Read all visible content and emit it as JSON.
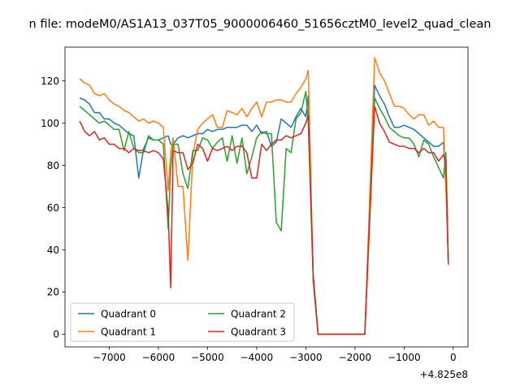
{
  "chart_data": {
    "type": "line",
    "title": "n file: modeM0/AS1A13_037T05_9000006460_51656cztM0_level2_quad_clean",
    "xlabel": "",
    "ylabel": "",
    "x_offset_label": "+4.825e8",
    "xlim": [
      -7900,
      300
    ],
    "ylim": [
      -6,
      136
    ],
    "xticks": [
      -7000,
      -6000,
      -5000,
      -4000,
      -3000,
      -2000,
      -1000,
      0
    ],
    "xtick_labels": [
      "−7000",
      "−6000",
      "−5000",
      "−4000",
      "−3000",
      "−2000",
      "−1000",
      "0"
    ],
    "yticks": [
      0,
      20,
      40,
      60,
      80,
      100,
      120
    ],
    "ytick_labels": [
      "0",
      "20",
      "40",
      "60",
      "80",
      "100",
      "120"
    ],
    "grid": false,
    "legend_position": "lower-left",
    "legend_columns": 2,
    "series": [
      {
        "name": "Quadrant 0",
        "color": "#1f77b4",
        "x": [
          -7600,
          -7500,
          -7400,
          -7300,
          -7200,
          -7100,
          -7000,
          -6900,
          -6800,
          -6700,
          -6600,
          -6500,
          -6400,
          -6300,
          -6200,
          -6100,
          -6000,
          -5900,
          -5800,
          -5750,
          -5700,
          -5600,
          -5500,
          -5400,
          -5300,
          -5200,
          -5100,
          -5000,
          -4900,
          -4800,
          -4700,
          -4600,
          -4500,
          -4400,
          -4300,
          -4200,
          -4100,
          -4000,
          -3900,
          -3800,
          -3700,
          -3600,
          -3500,
          -3400,
          -3300,
          -3200,
          -3100,
          -3000,
          -2950,
          -2850,
          -2750,
          -1800,
          -1600,
          -1500,
          -1400,
          -1300,
          -1200,
          -1100,
          -1000,
          -900,
          -800,
          -700,
          -600,
          -500,
          -400,
          -300,
          -200,
          -150,
          -100
        ],
        "y": [
          112,
          111,
          109,
          105,
          105,
          102,
          102,
          100,
          99,
          97,
          95,
          94,
          74,
          88,
          93,
          92,
          92,
          93,
          94,
          90,
          90,
          93,
          94,
          93,
          94,
          95,
          95,
          97,
          96,
          97,
          97,
          98,
          98,
          98,
          99,
          99,
          96,
          99,
          95,
          96,
          89,
          91,
          102,
          100,
          98,
          103,
          107,
          103,
          113,
          27,
          0,
          0,
          118,
          113,
          109,
          103,
          98,
          98,
          99,
          98,
          97,
          95,
          93,
          91,
          89,
          89,
          91,
          70,
          35
        ]
      },
      {
        "name": "Quadrant 1",
        "color": "#ff7f0e",
        "x": [
          -7600,
          -7500,
          -7400,
          -7300,
          -7200,
          -7100,
          -7000,
          -6900,
          -6800,
          -6700,
          -6600,
          -6500,
          -6400,
          -6300,
          -6200,
          -6100,
          -6000,
          -5900,
          -5800,
          -5750,
          -5700,
          -5600,
          -5500,
          -5400,
          -5300,
          -5200,
          -5100,
          -5000,
          -4900,
          -4800,
          -4700,
          -4600,
          -4500,
          -4400,
          -4300,
          -4200,
          -4100,
          -4000,
          -3900,
          -3800,
          -3700,
          -3600,
          -3500,
          -3400,
          -3300,
          -3200,
          -3100,
          -3000,
          -2950,
          -2850,
          -2750,
          -1800,
          -1600,
          -1500,
          -1400,
          -1300,
          -1200,
          -1100,
          -1000,
          -900,
          -800,
          -700,
          -600,
          -500,
          -400,
          -300,
          -200,
          -150,
          -100
        ],
        "y": [
          121,
          119,
          118,
          114,
          113,
          114,
          111,
          109,
          108,
          106,
          105,
          103,
          101,
          102,
          100,
          101,
          100,
          98,
          68,
          86,
          93,
          70,
          70,
          35,
          85,
          97,
          100,
          102,
          104,
          98,
          98,
          106,
          105,
          104,
          107,
          103,
          107,
          110,
          103,
          110,
          110,
          111,
          111,
          110,
          110,
          114,
          117,
          121,
          125,
          25,
          0,
          0,
          131,
          124,
          120,
          114,
          108,
          108,
          107,
          104,
          102,
          104,
          104,
          99,
          101,
          98,
          98,
          70,
          34
        ]
      },
      {
        "name": "Quadrant 2",
        "color": "#2ca02c",
        "x": [
          -7600,
          -7500,
          -7400,
          -7300,
          -7200,
          -7100,
          -7000,
          -6900,
          -6800,
          -6700,
          -6600,
          -6500,
          -6400,
          -6300,
          -6200,
          -6100,
          -6000,
          -5900,
          -5800,
          -5750,
          -5700,
          -5600,
          -5500,
          -5400,
          -5300,
          -5200,
          -5100,
          -5000,
          -4900,
          -4800,
          -4700,
          -4600,
          -4500,
          -4400,
          -4300,
          -4200,
          -4100,
          -4000,
          -3900,
          -3800,
          -3700,
          -3600,
          -3500,
          -3400,
          -3300,
          -3200,
          -3100,
          -3000,
          -2950,
          -2850,
          -2750,
          -1800,
          -1600,
          -1500,
          -1400,
          -1300,
          -1200,
          -1100,
          -1000,
          -900,
          -800,
          -700,
          -600,
          -500,
          -400,
          -300,
          -200,
          -150,
          -100
        ],
        "y": [
          108,
          106,
          104,
          102,
          100,
          101,
          99,
          97,
          97,
          87,
          96,
          88,
          86,
          86,
          94,
          92,
          92,
          90,
          50,
          78,
          90,
          90,
          76,
          69,
          87,
          87,
          93,
          92,
          88,
          91,
          93,
          82,
          94,
          81,
          93,
          76,
          84,
          93,
          96,
          95,
          95,
          53,
          49,
          88,
          86,
          102,
          105,
          115,
          100,
          25,
          0,
          0,
          112,
          107,
          103,
          98,
          96,
          94,
          93,
          93,
          90,
          84,
          92,
          90,
          84,
          79,
          74,
          86,
          33
        ]
      },
      {
        "name": "Quadrant 3",
        "color": "#d62728",
        "x": [
          -7600,
          -7500,
          -7400,
          -7300,
          -7200,
          -7100,
          -7000,
          -6900,
          -6800,
          -6700,
          -6600,
          -6500,
          -6400,
          -6300,
          -6200,
          -6100,
          -6000,
          -5900,
          -5800,
          -5750,
          -5700,
          -5600,
          -5500,
          -5400,
          -5300,
          -5200,
          -5100,
          -5000,
          -4900,
          -4800,
          -4700,
          -4600,
          -4500,
          -4400,
          -4300,
          -4200,
          -4100,
          -4000,
          -3900,
          -3800,
          -3700,
          -3600,
          -3500,
          -3400,
          -3300,
          -3200,
          -3100,
          -3000,
          -2950,
          -2850,
          -2750,
          -1800,
          -1600,
          -1500,
          -1400,
          -1300,
          -1200,
          -1100,
          -1000,
          -900,
          -800,
          -700,
          -600,
          -500,
          -400,
          -300,
          -200,
          -150,
          -100
        ],
        "y": [
          101,
          96,
          94,
          96,
          92,
          93,
          90,
          90,
          88,
          88,
          86,
          88,
          87,
          87,
          86,
          87,
          86,
          83,
          58,
          22,
          87,
          86,
          86,
          78,
          81,
          90,
          88,
          82,
          88,
          87,
          88,
          89,
          87,
          89,
          89,
          86,
          74,
          74,
          90,
          87,
          90,
          92,
          92,
          94,
          93,
          94,
          95,
          100,
          104,
          28,
          0,
          0,
          108,
          100,
          96,
          91,
          90,
          89,
          89,
          88,
          88,
          86,
          88,
          86,
          86,
          82,
          85,
          82,
          33
        ]
      }
    ]
  }
}
